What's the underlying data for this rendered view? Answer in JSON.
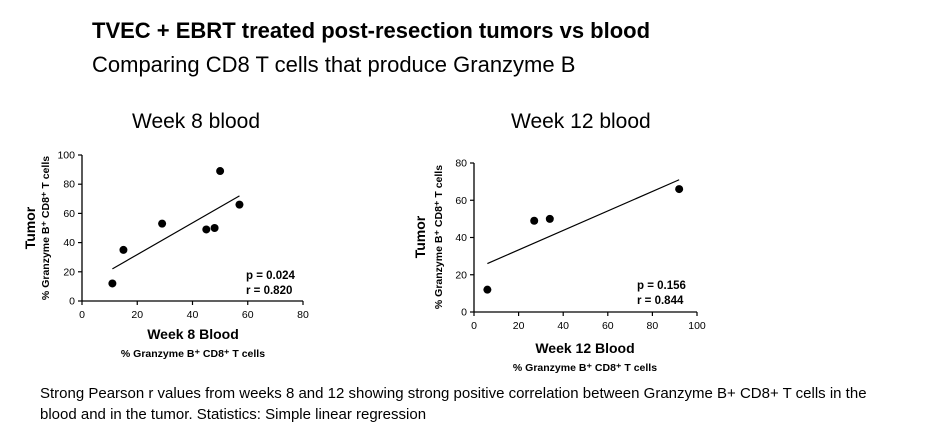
{
  "header": {
    "title": "TVEC + EBRT treated post-resection tumors vs blood",
    "subtitle": "Comparing CD8 T cells that produce Granzyme B"
  },
  "caption": {
    "line1": "Strong Pearson r values from weeks 8 and 12 showing strong positive correlation between Granzyme B+ CD8+ T cells in the",
    "line2": "blood and in the tumor. Statistics: Simple linear regression"
  },
  "chart_data": [
    {
      "type": "scatter",
      "title": "Week 8 blood",
      "xlabel": "Week 8 Blood",
      "xsublabel": "% Granzyme B⁺ CD8⁺ T cells",
      "ylabel": "Tumor",
      "ysublabel": "% Granzyme B⁺ CD8⁺ T cells",
      "xlim": [
        0,
        80
      ],
      "ylim": [
        0,
        100
      ],
      "xticks": [
        0,
        20,
        40,
        60,
        80
      ],
      "yticks": [
        0,
        20,
        40,
        60,
        80,
        100
      ],
      "points": [
        {
          "x": 11,
          "y": 12
        },
        {
          "x": 15,
          "y": 35
        },
        {
          "x": 29,
          "y": 53
        },
        {
          "x": 45,
          "y": 49
        },
        {
          "x": 48,
          "y": 50
        },
        {
          "x": 50,
          "y": 89
        },
        {
          "x": 57,
          "y": 66
        }
      ],
      "fit": {
        "x": [
          11,
          57
        ],
        "y": [
          22,
          72
        ]
      },
      "stats": {
        "p": "p = 0.024",
        "r": "r = 0.820"
      },
      "grid": false
    },
    {
      "type": "scatter",
      "title": "Week 12 blood",
      "xlabel": "Week 12 Blood",
      "xsublabel": "% Granzyme B⁺ CD8⁺ T cells",
      "ylabel": "Tumor",
      "ysublabel": "% Granzyme B⁺ CD8⁺ T cells",
      "xlim": [
        0,
        100
      ],
      "ylim": [
        0,
        80
      ],
      "xticks": [
        0,
        20,
        40,
        60,
        80,
        100
      ],
      "yticks": [
        0,
        20,
        40,
        60,
        80
      ],
      "points": [
        {
          "x": 6,
          "y": 12
        },
        {
          "x": 27,
          "y": 49
        },
        {
          "x": 34,
          "y": 50
        },
        {
          "x": 92,
          "y": 66
        }
      ],
      "fit": {
        "x": [
          6,
          92
        ],
        "y": [
          26,
          71
        ]
      },
      "stats": {
        "p": "p = 0.156",
        "r": "r = 0.844"
      },
      "grid": false
    }
  ]
}
